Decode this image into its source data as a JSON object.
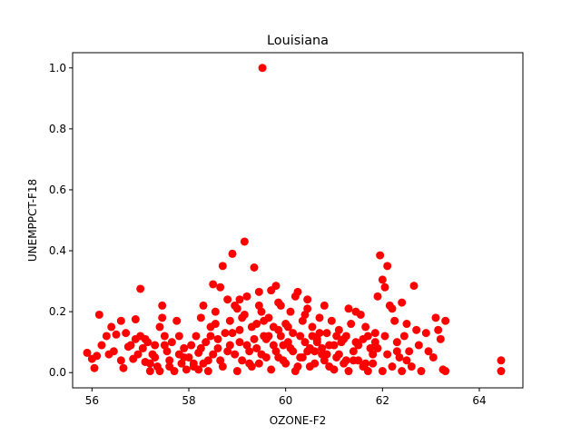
{
  "chart_data": {
    "type": "scatter",
    "title": "Louisiana",
    "xlabel": "OZONE-F2",
    "ylabel": "UNEMPPCT-F18",
    "xlim": [
      55.6,
      64.9
    ],
    "ylim": [
      -0.05,
      1.05
    ],
    "x_ticks": [
      56,
      58,
      60,
      62,
      64
    ],
    "x_tick_labels": [
      "56",
      "58",
      "60",
      "62",
      "64"
    ],
    "y_ticks": [
      0.0,
      0.2,
      0.4,
      0.6,
      0.8,
      1.0
    ],
    "y_tick_labels": [
      "0.0",
      "0.2",
      "0.4",
      "0.6",
      "0.8",
      "1.0"
    ],
    "grid": false,
    "legend": "none",
    "marker_color": "#ff0000",
    "series": [
      {
        "points": [
          [
            55.9,
            0.065
          ],
          [
            56.0,
            0.045
          ],
          [
            56.05,
            0.015
          ],
          [
            56.1,
            0.055
          ],
          [
            56.15,
            0.19
          ],
          [
            56.2,
            0.09
          ],
          [
            56.3,
            0.12
          ],
          [
            56.35,
            0.06
          ],
          [
            56.4,
            0.15
          ],
          [
            56.45,
            0.07
          ],
          [
            56.5,
            0.125
          ],
          [
            56.6,
            0.04
          ],
          [
            56.6,
            0.17
          ],
          [
            56.65,
            0.015
          ],
          [
            56.7,
            0.13
          ],
          [
            56.75,
            0.085
          ],
          [
            56.85,
            0.045
          ],
          [
            56.9,
            0.11
          ],
          [
            56.9,
            0.175
          ],
          [
            56.95,
            0.06
          ],
          [
            57.0,
            0.275
          ],
          [
            57.0,
            0.12
          ],
          [
            57.05,
            0.08
          ],
          [
            57.1,
            0.035
          ],
          [
            57.15,
            0.1
          ],
          [
            57.2,
            0.005
          ],
          [
            57.25,
            0.06
          ],
          [
            57.3,
            0.09
          ],
          [
            57.35,
            0.02
          ],
          [
            57.4,
            0.15
          ],
          [
            57.45,
            0.22
          ],
          [
            57.45,
            0.18
          ],
          [
            57.5,
            0.12
          ],
          [
            57.55,
            0.07
          ],
          [
            57.6,
            0.04
          ],
          [
            57.65,
            0.1
          ],
          [
            57.7,
            0.005
          ],
          [
            57.75,
            0.17
          ],
          [
            57.8,
            0.06
          ],
          [
            57.85,
            0.03
          ],
          [
            57.9,
            0.08
          ],
          [
            57.95,
            0.01
          ],
          [
            58.0,
            0.05
          ],
          [
            58.05,
            0.09
          ],
          [
            58.1,
            0.02
          ],
          [
            58.15,
            0.12
          ],
          [
            58.2,
            0.065
          ],
          [
            58.25,
            0.18
          ],
          [
            58.3,
            0.22
          ],
          [
            58.35,
            0.1
          ],
          [
            58.4,
            0.04
          ],
          [
            58.45,
            0.15
          ],
          [
            58.5,
            0.29
          ],
          [
            58.55,
            0.2
          ],
          [
            58.6,
            0.08
          ],
          [
            58.65,
            0.28
          ],
          [
            58.7,
            0.35
          ],
          [
            58.75,
            0.13
          ],
          [
            58.8,
            0.24
          ],
          [
            58.85,
            0.17
          ],
          [
            58.9,
            0.39
          ],
          [
            58.95,
            0.06
          ],
          [
            59.0,
            0.21
          ],
          [
            59.05,
            0.1
          ],
          [
            59.1,
            0.18
          ],
          [
            59.15,
            0.43
          ],
          [
            59.2,
            0.25
          ],
          [
            59.25,
            0.03
          ],
          [
            59.3,
            0.15
          ],
          [
            59.35,
            0.345
          ],
          [
            59.4,
            0.08
          ],
          [
            59.45,
            0.265
          ],
          [
            59.5,
            0.2
          ],
          [
            59.52,
            1.0
          ],
          [
            59.55,
            0.12
          ],
          [
            59.6,
            0.05
          ],
          [
            59.65,
            0.18
          ],
          [
            59.7,
            0.27
          ],
          [
            59.75,
            0.09
          ],
          [
            59.8,
            0.285
          ],
          [
            59.85,
            0.14
          ],
          [
            59.9,
            0.22
          ],
          [
            59.95,
            0.04
          ],
          [
            60.0,
            0.16
          ],
          [
            60.05,
            0.1
          ],
          [
            60.1,
            0.2
          ],
          [
            60.15,
            0.07
          ],
          [
            60.2,
            0.25
          ],
          [
            60.25,
            0.265
          ],
          [
            60.3,
            0.12
          ],
          [
            60.35,
            0.05
          ],
          [
            60.4,
            0.19
          ],
          [
            60.45,
            0.24
          ],
          [
            60.5,
            0.08
          ],
          [
            60.55,
            0.15
          ],
          [
            60.6,
            0.03
          ],
          [
            60.65,
            0.11
          ],
          [
            60.7,
            0.18
          ],
          [
            60.75,
            0.06
          ],
          [
            60.8,
            0.22
          ],
          [
            60.85,
            0.13
          ],
          [
            60.9,
            0.02
          ],
          [
            60.95,
            0.17
          ],
          [
            61.0,
            0.09
          ],
          [
            61.05,
            0.05
          ],
          [
            61.1,
            0.14
          ],
          [
            61.15,
            0.1
          ],
          [
            61.2,
            0.03
          ],
          [
            61.25,
            0.12
          ],
          [
            61.3,
            0.21
          ],
          [
            61.35,
            0.16
          ],
          [
            61.4,
            0.07
          ],
          [
            61.45,
            0.2
          ],
          [
            61.5,
            0.04
          ],
          [
            61.55,
            0.19
          ],
          [
            61.6,
            0.11
          ],
          [
            61.65,
            0.15
          ],
          [
            61.7,
            0.005
          ],
          [
            61.75,
            0.08
          ],
          [
            61.8,
            0.06
          ],
          [
            61.85,
            0.13
          ],
          [
            61.9,
            0.25
          ],
          [
            61.95,
            0.385
          ],
          [
            62.0,
            0.305
          ],
          [
            62.05,
            0.28
          ],
          [
            62.1,
            0.35
          ],
          [
            62.15,
            0.22
          ],
          [
            62.2,
            0.21
          ],
          [
            62.25,
            0.17
          ],
          [
            62.3,
            0.1
          ],
          [
            62.35,
            0.05
          ],
          [
            62.4,
            0.23
          ],
          [
            62.45,
            0.12
          ],
          [
            62.5,
            0.16
          ],
          [
            62.55,
            0.07
          ],
          [
            62.6,
            0.02
          ],
          [
            62.65,
            0.285
          ],
          [
            62.7,
            0.14
          ],
          [
            62.75,
            0.09
          ],
          [
            62.8,
            0.005
          ],
          [
            62.9,
            0.13
          ],
          [
            62.95,
            0.07
          ],
          [
            63.05,
            0.05
          ],
          [
            63.1,
            0.18
          ],
          [
            63.15,
            0.14
          ],
          [
            63.2,
            0.11
          ],
          [
            63.25,
            0.01
          ],
          [
            63.3,
            0.17
          ],
          [
            63.3,
            0.005
          ],
          [
            64.45,
            0.04
          ],
          [
            64.45,
            0.005
          ],
          [
            58.2,
            0.01
          ],
          [
            58.3,
            0.03
          ],
          [
            58.4,
            0.005
          ],
          [
            58.5,
            0.06
          ],
          [
            58.6,
            0.11
          ],
          [
            58.7,
            0.02
          ],
          [
            58.8,
            0.07
          ],
          [
            58.9,
            0.13
          ],
          [
            59.0,
            0.005
          ],
          [
            59.1,
            0.04
          ],
          [
            59.2,
            0.09
          ],
          [
            59.3,
            0.02
          ],
          [
            59.4,
            0.16
          ],
          [
            59.5,
            0.06
          ],
          [
            59.6,
            0.11
          ],
          [
            59.7,
            0.01
          ],
          [
            59.8,
            0.07
          ],
          [
            59.9,
            0.12
          ],
          [
            60.0,
            0.03
          ],
          [
            60.1,
            0.08
          ],
          [
            60.2,
            0.005
          ],
          [
            60.3,
            0.05
          ],
          [
            60.4,
            0.1
          ],
          [
            60.5,
            0.02
          ],
          [
            60.6,
            0.07
          ],
          [
            60.7,
            0.13
          ],
          [
            60.8,
            0.04
          ],
          [
            60.9,
            0.09
          ],
          [
            61.0,
            0.01
          ],
          [
            61.1,
            0.06
          ],
          [
            61.2,
            0.11
          ],
          [
            61.3,
            0.005
          ],
          [
            61.4,
            0.04
          ],
          [
            61.5,
            0.09
          ],
          [
            61.6,
            0.02
          ],
          [
            61.7,
            0.12
          ],
          [
            61.8,
            0.03
          ],
          [
            61.9,
            0.08
          ],
          [
            62.0,
            0.005
          ],
          [
            62.1,
            0.06
          ],
          [
            62.2,
            0.02
          ],
          [
            62.3,
            0.07
          ],
          [
            62.4,
            0.005
          ],
          [
            62.5,
            0.04
          ],
          [
            58.25,
            0.08
          ],
          [
            58.45,
            0.12
          ],
          [
            58.65,
            0.04
          ],
          [
            58.85,
            0.09
          ],
          [
            59.05,
            0.14
          ],
          [
            59.25,
            0.07
          ],
          [
            59.45,
            0.03
          ],
          [
            59.65,
            0.12
          ],
          [
            59.85,
            0.05
          ],
          [
            60.05,
            0.15
          ],
          [
            60.25,
            0.02
          ],
          [
            60.45,
            0.07
          ],
          [
            60.65,
            0.1
          ],
          [
            60.85,
            0.06
          ],
          [
            61.05,
            0.12
          ],
          [
            61.25,
            0.04
          ],
          [
            61.45,
            0.1
          ],
          [
            61.65,
            0.03
          ],
          [
            61.85,
            0.1
          ],
          [
            62.05,
            0.12
          ],
          [
            59.15,
            0.19
          ],
          [
            59.35,
            0.11
          ],
          [
            59.55,
            0.17
          ],
          [
            59.75,
            0.15
          ],
          [
            59.95,
            0.09
          ],
          [
            60.15,
            0.13
          ],
          [
            60.35,
            0.17
          ],
          [
            60.55,
            0.12
          ],
          [
            60.75,
            0.08
          ],
          [
            58.95,
            0.22
          ],
          [
            59.05,
            0.24
          ],
          [
            59.45,
            0.22
          ],
          [
            59.85,
            0.23
          ],
          [
            60.45,
            0.21
          ],
          [
            58.55,
            0.16
          ],
          [
            57.3,
            0.05
          ],
          [
            57.6,
            0.02
          ],
          [
            57.8,
            0.12
          ],
          [
            57.5,
            0.09
          ],
          [
            57.2,
            0.03
          ],
          [
            56.8,
            0.09
          ],
          [
            57.1,
            0.11
          ],
          [
            57.4,
            0.005
          ],
          [
            57.9,
            0.05
          ],
          [
            58.1,
            0.03
          ]
        ]
      }
    ]
  }
}
